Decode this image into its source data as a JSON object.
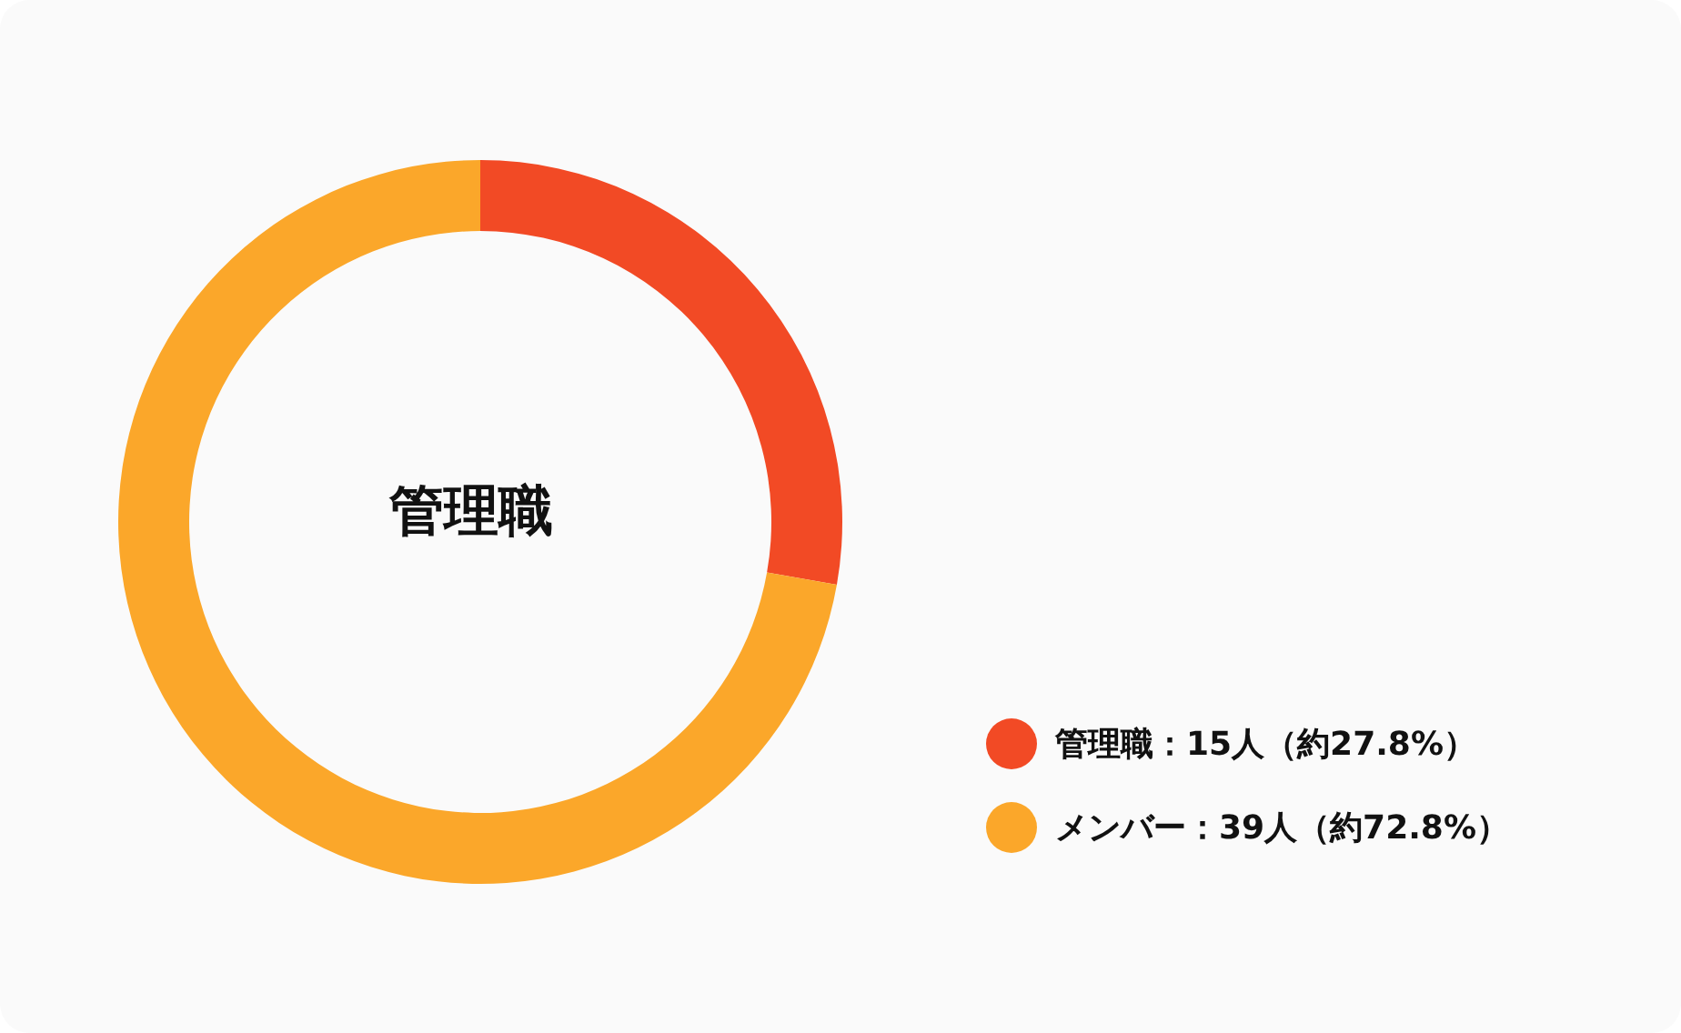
{
  "chart_data": {
    "type": "donut",
    "title": "管理職",
    "categories": [
      "管理職：15人（約27.8%）",
      "メンバー：39人（約72.8%）"
    ],
    "values": [
      15,
      39
    ],
    "colors": [
      "#f24a25",
      "#fba72a"
    ],
    "legend": "bottom right"
  }
}
